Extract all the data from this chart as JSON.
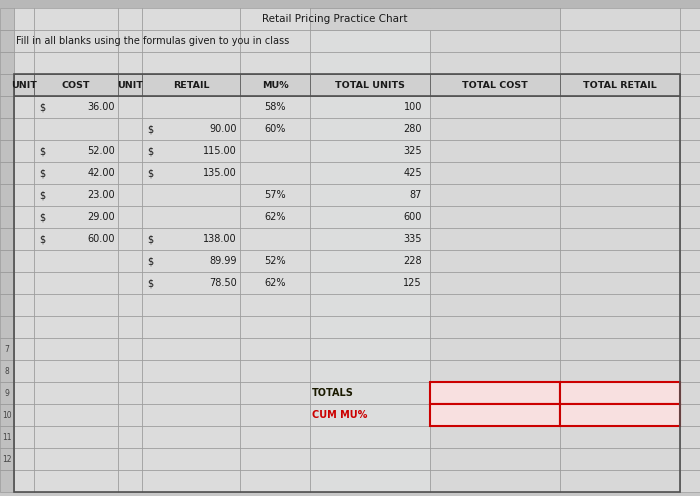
{
  "title": "Retail Pricing Practice Chart",
  "subtitle": "Fill in all blanks using the formulas given to you in class",
  "headers": [
    "UNIT",
    "COST",
    "UNIT",
    "RETAIL",
    "MU%",
    "TOTAL UNITS",
    "TOTAL COST",
    "TOTAL RETAIL"
  ],
  "data_rows": [
    {
      "unit_cost_sign": "$",
      "unit_cost": "36.00",
      "unit_retail_sign": "",
      "unit_retail": "",
      "mu": "58%",
      "total_units": "100"
    },
    {
      "unit_cost_sign": "",
      "unit_cost": "",
      "unit_retail_sign": "$",
      "unit_retail": "90.00",
      "mu": "60%",
      "total_units": "280"
    },
    {
      "unit_cost_sign": "$",
      "unit_cost": "52.00",
      "unit_retail_sign": "$",
      "unit_retail": "115.00",
      "mu": "",
      "total_units": "325"
    },
    {
      "unit_cost_sign": "$",
      "unit_cost": "42.00",
      "unit_retail_sign": "$",
      "unit_retail": "135.00",
      "mu": "",
      "total_units": "425"
    },
    {
      "unit_cost_sign": "$",
      "unit_cost": "23.00",
      "unit_retail_sign": "",
      "unit_retail": "",
      "mu": "57%",
      "total_units": "87"
    },
    {
      "unit_cost_sign": "$",
      "unit_cost": "29.00",
      "unit_retail_sign": "",
      "unit_retail": "",
      "mu": "62%",
      "total_units": "600"
    },
    {
      "unit_cost_sign": "$",
      "unit_cost": "60.00",
      "unit_retail_sign": "$",
      "unit_retail": "138.00",
      "mu": "",
      "total_units": "335"
    },
    {
      "unit_cost_sign": "",
      "unit_cost": "",
      "unit_retail_sign": "$",
      "unit_retail": "89.99",
      "mu": "52%",
      "total_units": "228"
    },
    {
      "unit_cost_sign": "",
      "unit_cost": "",
      "unit_retail_sign": "$",
      "unit_retail": "78.50",
      "mu": "62%",
      "total_units": "125"
    }
  ],
  "bg_color": "#c8c8c8",
  "cell_bg": "#dcdcdc",
  "cell_bg_light": "#e4e4e4",
  "grid_color": "#909090",
  "grid_color_dark": "#606060",
  "red_color": "#cc0000",
  "text_color": "#1a1a1a",
  "red_cell_color": "#f8e0e0",
  "title_fontsize": 7.5,
  "subtitle_fontsize": 7.0,
  "header_fontsize": 6.8,
  "data_fontsize": 7.0
}
